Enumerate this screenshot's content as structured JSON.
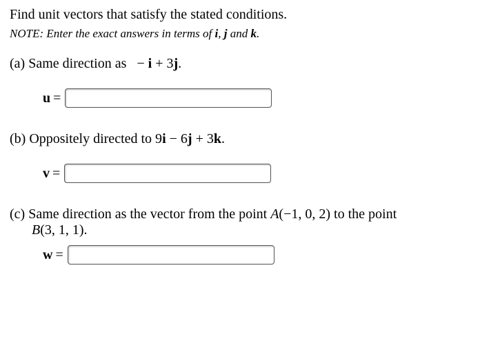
{
  "prompt": "Find unit vectors that satisfy the stated conditions.",
  "note_prefix": "NOTE: Enter the exact answers in terms of ",
  "note_vec_i": "i",
  "note_sep1": ", ",
  "note_vec_j": "j",
  "note_mid": " and ",
  "note_vec_k": "k",
  "note_end": ".",
  "a": {
    "label_pre": "(a) Same direction as   − ",
    "i": "i",
    "plus": " + 3",
    "j": "j",
    "end": ".",
    "var": "u",
    "eq": " ="
  },
  "b": {
    "label_pre": "(b) Oppositely directed to 9",
    "i": "i",
    "m1": " − 6",
    "j": "j",
    "m2": " + 3",
    "k": "k",
    "end": ".",
    "var": "v",
    "eq": " ="
  },
  "c": {
    "label_pre": "(c) Same direction as the vector from the point ",
    "A": "A",
    "Aargs": "(−1, 0, 2)",
    "mid": " to the point",
    "B": "B",
    "Bargs": "(3, 1, 1).",
    "var": "w",
    "eq": " ="
  }
}
